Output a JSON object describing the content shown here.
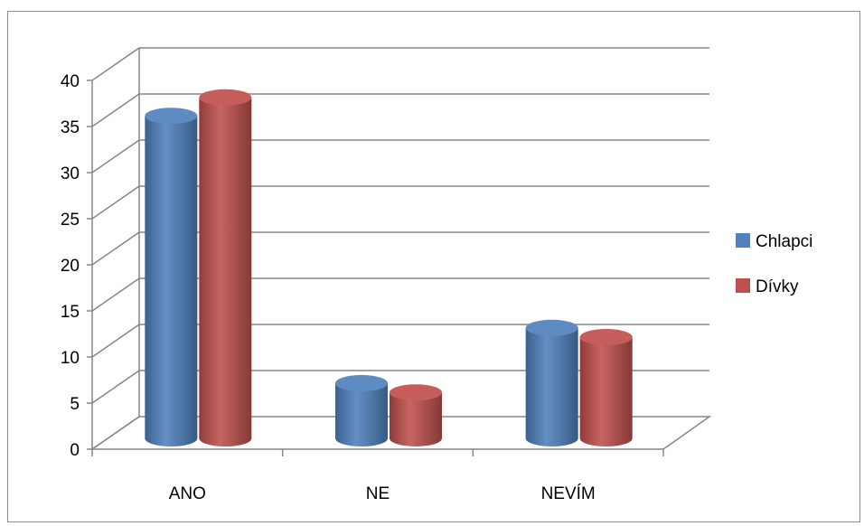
{
  "chart_data": {
    "type": "bar",
    "style": "3d-cylinder",
    "categories": [
      "ANO",
      "NE",
      "NEVÍM"
    ],
    "series": [
      {
        "name": "Chlapci",
        "values": [
          34,
          5,
          11
        ],
        "color": "#4F81BD"
      },
      {
        "name": "Dívky",
        "values": [
          36,
          4,
          10
        ],
        "color": "#C0504D"
      }
    ],
    "title": "",
    "xlabel": "",
    "ylabel": "",
    "ylim": [
      0,
      40
    ],
    "yticks": [
      0,
      5,
      10,
      15,
      20,
      25,
      30,
      35,
      40
    ],
    "grid": true,
    "legend_position": "right"
  }
}
